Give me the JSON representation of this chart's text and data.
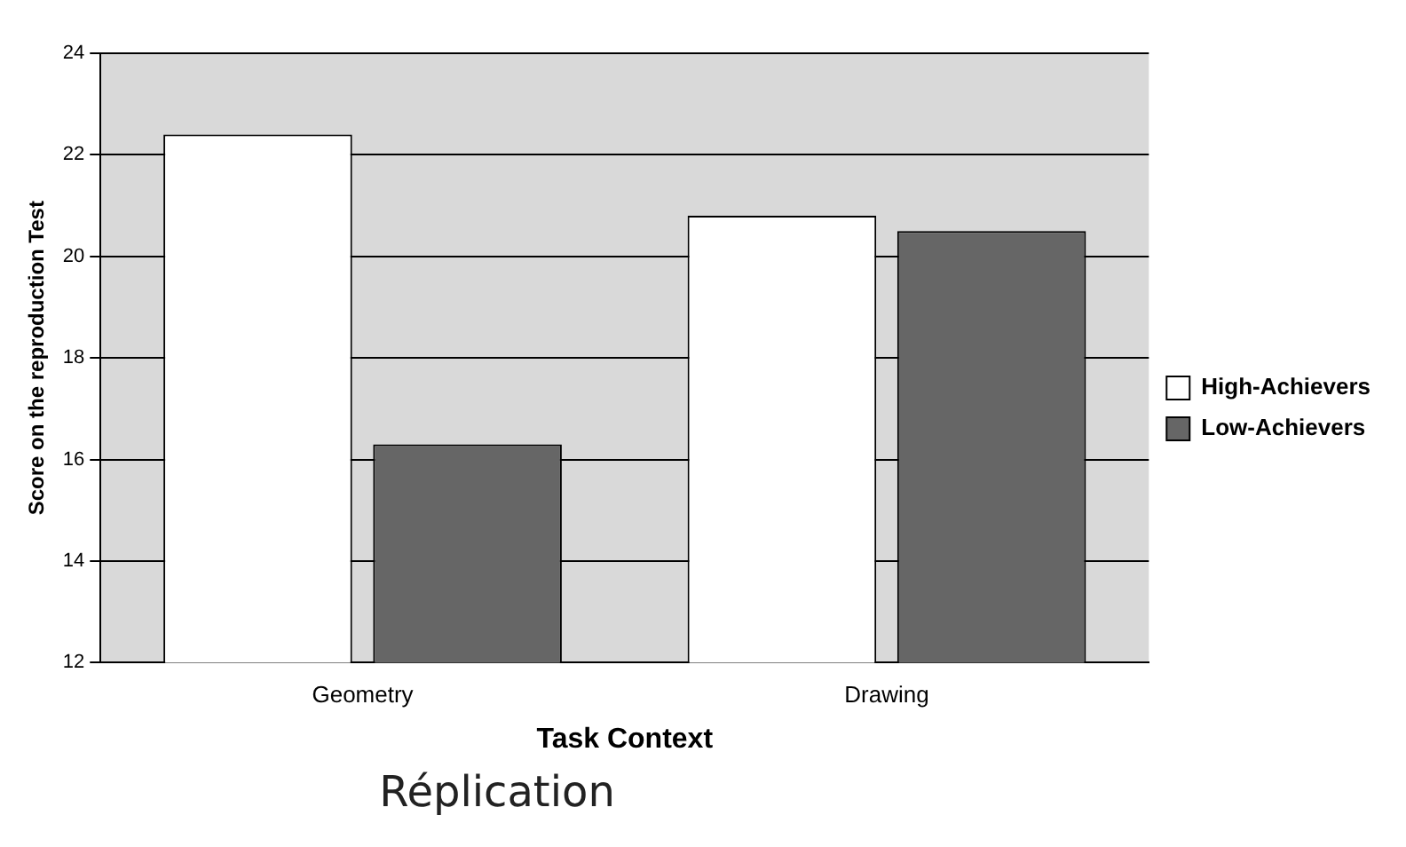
{
  "chart_data": {
    "type": "bar",
    "xlabel": "Task Context",
    "ylabel": "Score on the reproduction Test",
    "categories": [
      "Geometry",
      "Drawing"
    ],
    "series": [
      {
        "name": "High-Achievers",
        "color": "#ffffff",
        "values": [
          22.4,
          20.8
        ]
      },
      {
        "name": "Low-Achievers",
        "color": "#666666",
        "values": [
          16.3,
          20.5
        ]
      }
    ],
    "ylim": [
      12,
      24
    ],
    "yticks": [
      12,
      14,
      16,
      18,
      20,
      22,
      24
    ],
    "grid": "y",
    "legend": "right",
    "annotations": [
      "Réplication"
    ]
  }
}
